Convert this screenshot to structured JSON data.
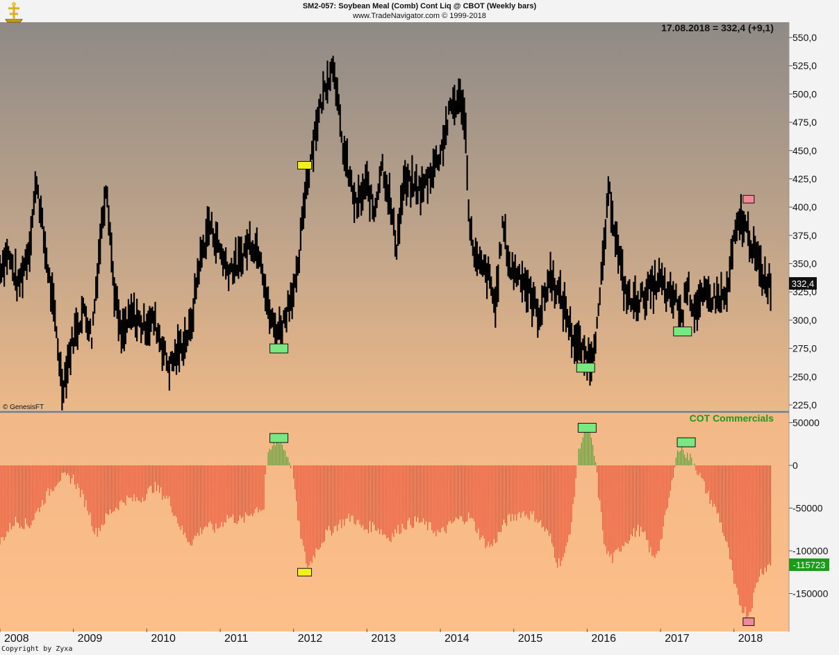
{
  "header": {
    "line1": "SM2-057:  Soybean Meal (Comb) Cont Liq @ CBOT  (Weekly bars)",
    "line2": "www.TradeNavigator.com © 1999-2018"
  },
  "watermark": "© GenesisFT",
  "copyright": "Copyright by Zyxa",
  "last_quote": "17.08.2018 = 332,4 (+9,1)",
  "colors": {
    "price_bars": "#000000",
    "cot_negative": "#e8442c",
    "cot_positive": "#44a033",
    "marker_green": "#7ae880",
    "marker_yellow": "#f5f019",
    "marker_pink": "#f08a98",
    "cot_title": "#1c9a1c"
  },
  "chart_data": [
    {
      "type": "bar",
      "title": "",
      "series_name": "Soybean Meal (Comb) Cont Liq @ CBOT (Weekly bars)",
      "x_tick_labels": [
        "2008",
        "2009",
        "2010",
        "2011",
        "2012",
        "2013",
        "2014",
        "2015",
        "2016",
        "2017",
        "2018"
      ],
      "y_tick_labels": [
        "550,0",
        "525,0",
        "500,0",
        "475,0",
        "450,0",
        "425,0",
        "400,0",
        "375,0",
        "350,0",
        "325,0",
        "300,0",
        "275,0",
        "250,0",
        "225,0"
      ],
      "ylim": [
        220,
        555
      ],
      "xlim": [
        2008.0,
        2018.75
      ],
      "last_value_label": "332,4",
      "key_points": [
        [
          2008.0,
          345
        ],
        [
          2008.1,
          360
        ],
        [
          2008.25,
          330
        ],
        [
          2008.4,
          365
        ],
        [
          2008.5,
          425
        ],
        [
          2008.6,
          370
        ],
        [
          2008.75,
          300
        ],
        [
          2008.85,
          240
        ],
        [
          2008.95,
          270
        ],
        [
          2009.0,
          285
        ],
        [
          2009.15,
          310
        ],
        [
          2009.25,
          285
        ],
        [
          2009.35,
          360
        ],
        [
          2009.45,
          425
        ],
        [
          2009.55,
          330
        ],
        [
          2009.65,
          285
        ],
        [
          2009.8,
          305
        ],
        [
          2009.95,
          295
        ],
        [
          2010.1,
          300
        ],
        [
          2010.2,
          280
        ],
        [
          2010.3,
          258
        ],
        [
          2010.45,
          275
        ],
        [
          2010.6,
          292
        ],
        [
          2010.7,
          345
        ],
        [
          2010.85,
          385
        ],
        [
          2010.95,
          370
        ],
        [
          2011.1,
          345
        ],
        [
          2011.25,
          350
        ],
        [
          2011.4,
          370
        ],
        [
          2011.55,
          360
        ],
        [
          2011.65,
          310
        ],
        [
          2011.75,
          290
        ],
        [
          2011.85,
          295
        ],
        [
          2011.95,
          320
        ],
        [
          2012.05,
          335
        ],
        [
          2012.15,
          410
        ],
        [
          2012.3,
          470
        ],
        [
          2012.45,
          512
        ],
        [
          2012.55,
          528
        ],
        [
          2012.65,
          460
        ],
        [
          2012.75,
          430
        ],
        [
          2012.85,
          400
        ],
        [
          2013.0,
          420
        ],
        [
          2013.1,
          395
        ],
        [
          2013.2,
          440
        ],
        [
          2013.3,
          410
        ],
        [
          2013.4,
          365
        ],
        [
          2013.5,
          420
        ],
        [
          2013.6,
          420
        ],
        [
          2013.75,
          415
        ],
        [
          2014.0,
          448
        ],
        [
          2014.15,
          490
        ],
        [
          2014.3,
          495
        ],
        [
          2014.35,
          460
        ],
        [
          2014.4,
          380
        ],
        [
          2014.5,
          350
        ],
        [
          2014.65,
          340
        ],
        [
          2014.75,
          312
        ],
        [
          2014.85,
          385
        ],
        [
          2014.95,
          345
        ],
        [
          2015.1,
          340
        ],
        [
          2015.2,
          325
        ],
        [
          2015.35,
          305
        ],
        [
          2015.5,
          340
        ],
        [
          2015.6,
          325
        ],
        [
          2015.7,
          310
        ],
        [
          2015.8,
          285
        ],
        [
          2015.95,
          270
        ],
        [
          2016.05,
          265
        ],
        [
          2016.15,
          300
        ],
        [
          2016.25,
          380
        ],
        [
          2016.3,
          415
        ],
        [
          2016.4,
          370
        ],
        [
          2016.5,
          330
        ],
        [
          2016.6,
          315
        ],
        [
          2016.75,
          320
        ],
        [
          2016.9,
          330
        ],
        [
          2017.0,
          335
        ],
        [
          2017.1,
          320
        ],
        [
          2017.2,
          320
        ],
        [
          2017.3,
          300
        ],
        [
          2017.35,
          335
        ],
        [
          2017.45,
          310
        ],
        [
          2017.6,
          320
        ],
        [
          2017.75,
          320
        ],
        [
          2017.9,
          320
        ],
        [
          2018.0,
          370
        ],
        [
          2018.1,
          390
        ],
        [
          2018.2,
          375
        ],
        [
          2018.3,
          355
        ],
        [
          2018.4,
          338
        ],
        [
          2018.5,
          332.4
        ]
      ],
      "markers": [
        {
          "type": "green",
          "x": 2011.8,
          "y": 275
        },
        {
          "type": "yellow",
          "x": 2012.15,
          "y": 437
        },
        {
          "type": "green",
          "x": 2015.98,
          "y": 258
        },
        {
          "type": "green",
          "x": 2017.3,
          "y": 290
        },
        {
          "type": "pink",
          "x": 2018.2,
          "y": 407
        }
      ]
    },
    {
      "type": "bar",
      "title": "COT Commercials",
      "y_tick_labels": [
        "50000",
        "0",
        "-50000",
        "-100000",
        "-150000"
      ],
      "ylim": [
        -195000,
        62000
      ],
      "last_value_label": "-115723",
      "key_points": [
        [
          2008.0,
          -90000
        ],
        [
          2008.2,
          -65000
        ],
        [
          2008.4,
          -70000
        ],
        [
          2008.6,
          -40000
        ],
        [
          2008.8,
          -15000
        ],
        [
          2009.0,
          -15000
        ],
        [
          2009.2,
          -50000
        ],
        [
          2009.3,
          -80000
        ],
        [
          2009.5,
          -55000
        ],
        [
          2009.7,
          -40000
        ],
        [
          2009.9,
          -40000
        ],
        [
          2010.1,
          -25000
        ],
        [
          2010.3,
          -40000
        ],
        [
          2010.5,
          -80000
        ],
        [
          2010.6,
          -90000
        ],
        [
          2010.8,
          -70000
        ],
        [
          2010.95,
          -75000
        ],
        [
          2011.1,
          -60000
        ],
        [
          2011.3,
          -65000
        ],
        [
          2011.5,
          -50000
        ],
        [
          2011.6,
          -50000
        ],
        [
          2011.62,
          0
        ],
        [
          2011.7,
          20000
        ],
        [
          2011.8,
          32000
        ],
        [
          2011.95,
          5000
        ],
        [
          2012.0,
          -10000
        ],
        [
          2012.05,
          -60000
        ],
        [
          2012.15,
          -105000
        ],
        [
          2012.2,
          -120000
        ],
        [
          2012.3,
          -100000
        ],
        [
          2012.45,
          -80000
        ],
        [
          2012.6,
          -70000
        ],
        [
          2012.8,
          -60000
        ],
        [
          2012.95,
          -75000
        ],
        [
          2013.1,
          -70000
        ],
        [
          2013.3,
          -85000
        ],
        [
          2013.5,
          -70000
        ],
        [
          2013.7,
          -65000
        ],
        [
          2013.9,
          -75000
        ],
        [
          2014.0,
          -80000
        ],
        [
          2014.2,
          -65000
        ],
        [
          2014.4,
          -60000
        ],
        [
          2014.6,
          -90000
        ],
        [
          2014.7,
          -95000
        ],
        [
          2014.9,
          -65000
        ],
        [
          2015.1,
          -55000
        ],
        [
          2015.3,
          -60000
        ],
        [
          2015.5,
          -85000
        ],
        [
          2015.6,
          -115000
        ],
        [
          2015.7,
          -105000
        ],
        [
          2015.8,
          -60000
        ],
        [
          2015.85,
          -10000
        ],
        [
          2015.9,
          25000
        ],
        [
          2016.0,
          45000
        ],
        [
          2016.08,
          20000
        ],
        [
          2016.12,
          0
        ],
        [
          2016.15,
          -30000
        ],
        [
          2016.25,
          -100000
        ],
        [
          2016.35,
          -110000
        ],
        [
          2016.5,
          -90000
        ],
        [
          2016.7,
          -75000
        ],
        [
          2016.8,
          -85000
        ],
        [
          2016.9,
          -110000
        ],
        [
          2017.0,
          -90000
        ],
        [
          2017.15,
          -25000
        ],
        [
          2017.2,
          10000
        ],
        [
          2017.3,
          25000
        ],
        [
          2017.35,
          12000
        ],
        [
          2017.45,
          5000
        ],
        [
          2017.55,
          -15000
        ],
        [
          2017.65,
          -35000
        ],
        [
          2017.8,
          -60000
        ],
        [
          2017.95,
          -110000
        ],
        [
          2018.0,
          -140000
        ],
        [
          2018.1,
          -165000
        ],
        [
          2018.2,
          -175000
        ],
        [
          2018.25,
          -160000
        ],
        [
          2018.35,
          -125000
        ],
        [
          2018.5,
          -115723
        ]
      ],
      "markers": [
        {
          "type": "green",
          "x": 2011.8,
          "y": 32000
        },
        {
          "type": "yellow",
          "x": 2012.15,
          "y": -125000
        },
        {
          "type": "green",
          "x": 2016.0,
          "y": 44000
        },
        {
          "type": "green",
          "x": 2017.35,
          "y": 27000
        },
        {
          "type": "pink",
          "x": 2018.2,
          "y": -183000
        }
      ]
    }
  ]
}
